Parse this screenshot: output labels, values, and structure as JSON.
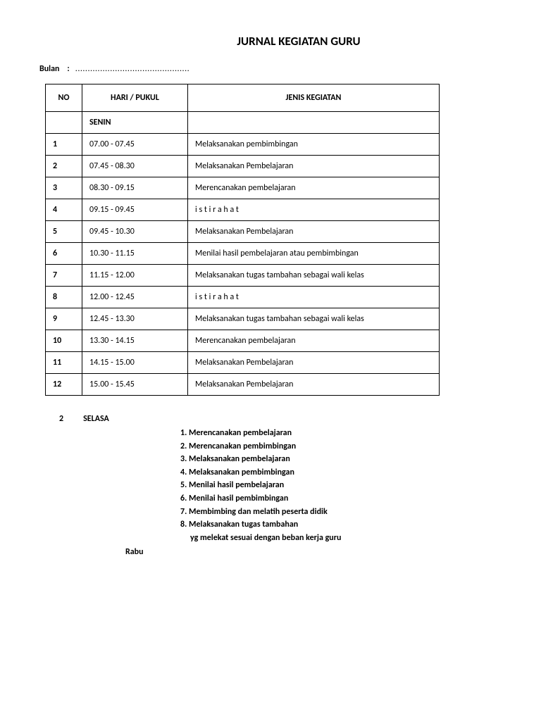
{
  "title": "JURNAL KEGIATAN GURU",
  "bulan_label": "Bulan",
  "bulan_sep": ":",
  "bulan_dots": "..............................................",
  "table": {
    "headers": {
      "no": "NO",
      "time": "HARI / PUKUL",
      "activity": "JENIS KEGIATAN"
    },
    "day": "SENIN",
    "rows": [
      {
        "no": "1",
        "time": "07.00 - 07.45",
        "activity": "Melaksanakan pembimbingan"
      },
      {
        "no": "2",
        "time": "07.45 - 08.30",
        "activity": "Melaksanakan  Pembelajaran"
      },
      {
        "no": "3",
        "time": "08.30 - 09.15",
        "activity": "Merencanakan pembelajaran"
      },
      {
        "no": "4",
        "time": "09.15 - 09.45",
        "activity": "i s t i r a h a t"
      },
      {
        "no": "5",
        "time": "09.45 - 10.30",
        "activity": "Melaksanakan  Pembelajaran"
      },
      {
        "no": "6",
        "time": "10.30 - 11.15",
        "activity": "Menilai hasil pembelajaran atau pembimbingan"
      },
      {
        "no": "7",
        "time": "11.15 - 12.00",
        "activity": "Melaksanakan tugas tambahan sebagai wali kelas"
      },
      {
        "no": "8",
        "time": "12.00 - 12.45",
        "activity": "i s t i r a h a t"
      },
      {
        "no": "9",
        "time": "12.45 - 13.30",
        "activity": "Melaksanakan tugas tambahan sebagai wali kelas"
      },
      {
        "no": "10",
        "time": "13.30 - 14.15",
        "activity": "Merencanakan pembelajaran"
      },
      {
        "no": "11",
        "time": "14.15 - 15.00",
        "activity": "Melaksanakan  Pembelajaran"
      },
      {
        "no": "12",
        "time": "15.00 - 15.45",
        "activity": "Melaksanakan  Pembelajaran"
      }
    ]
  },
  "selasa": {
    "num": "2",
    "label": "SELASA",
    "items": [
      "1. Merencanakan pembelajaran",
      "2. Merencanakan   pembimbingan",
      "3. Melaksanakan pembelajaran",
      "4. Melaksanakan   pembimbingan",
      "5. Menilai hasil pembelajaran",
      "6. Menilai hasil pembimbingan",
      "7. Membimbing dan melatih peserta didik",
      "8. Melaksanakan tugas tambahan"
    ],
    "subline": "yg melekat sesuai dengan beban kerja guru"
  },
  "rabu": "Rabu"
}
